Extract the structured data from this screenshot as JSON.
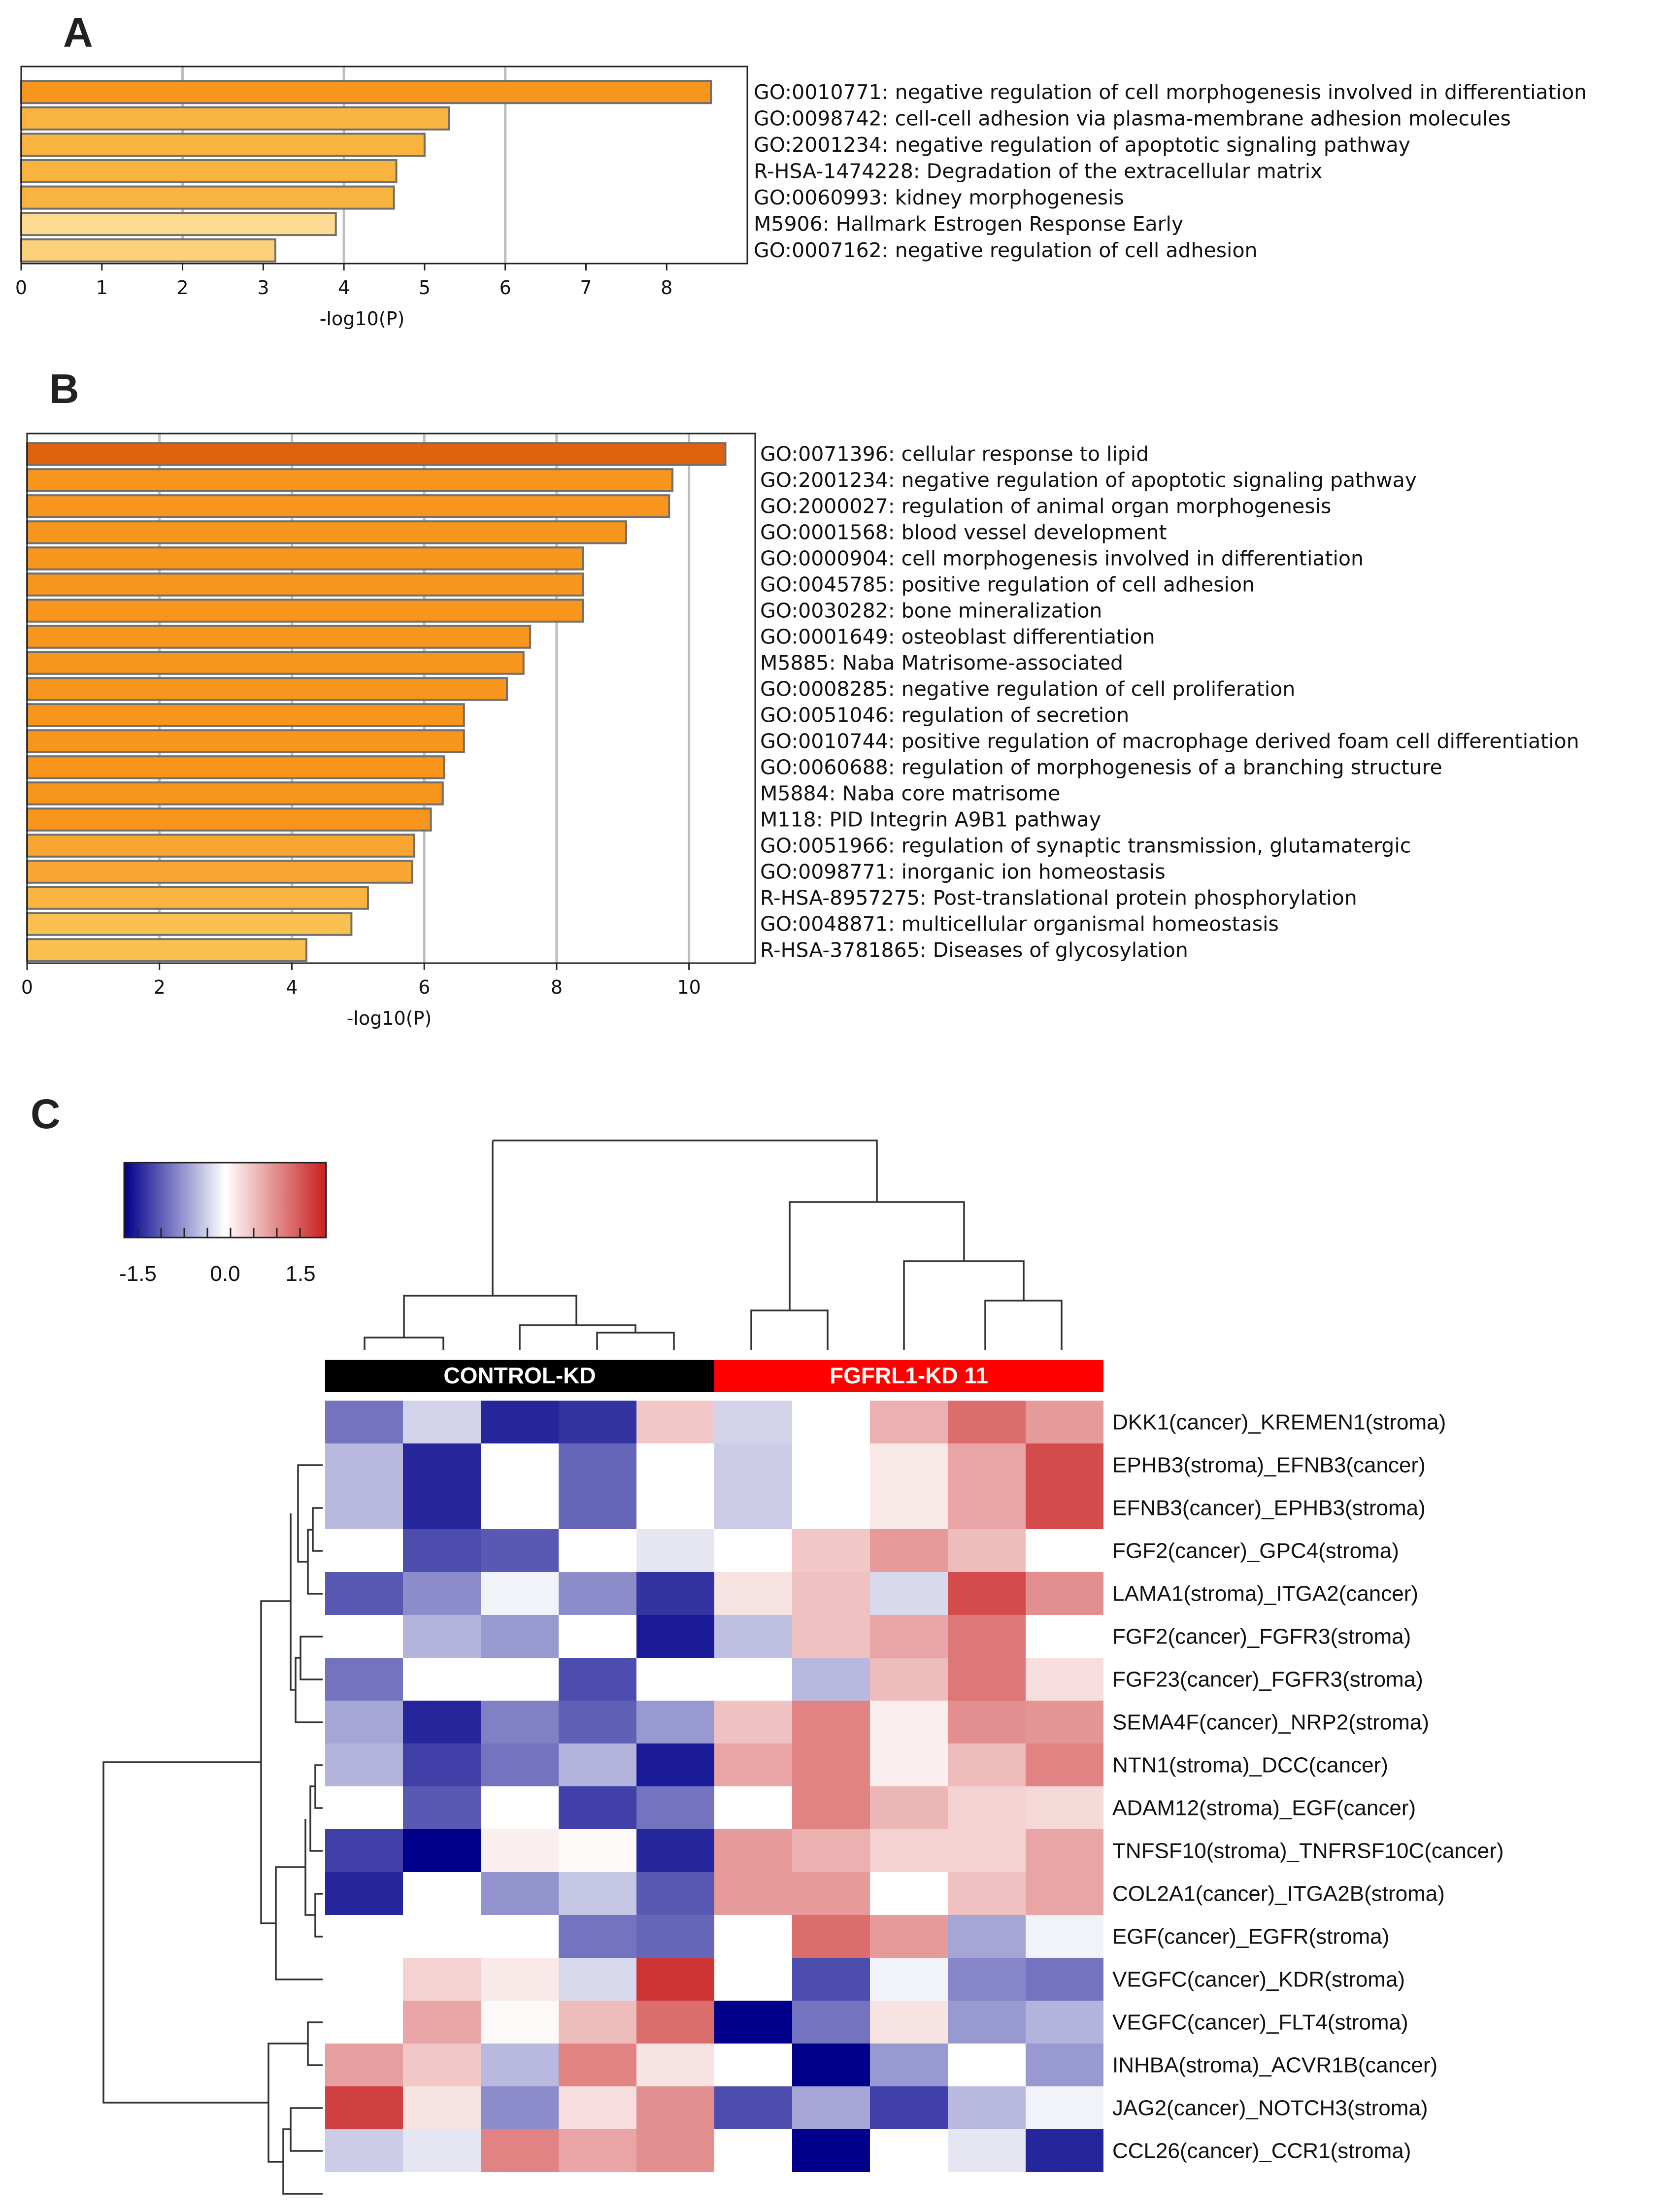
{
  "chart_data": [
    {
      "panel": "A",
      "type": "bar",
      "orientation": "horizontal",
      "xlabel": "-log10(P)",
      "xlim": [
        0,
        9
      ],
      "xticks": [
        "0",
        "1",
        "2",
        "3",
        "4",
        "5",
        "6",
        "7",
        "8"
      ],
      "grid_at": [
        2,
        4,
        6
      ],
      "categories": [
        "GO:0010771: negative regulation of cell morphogenesis involved in differentiation",
        "GO:0098742: cell-cell adhesion via plasma-membrane adhesion molecules",
        "GO:2001234: negative regulation of apoptotic signaling pathway",
        "R-HSA-1474228: Degradation of the extracellular matrix",
        "GO:0060993: kidney morphogenesis",
        "M5906: Hallmark Estrogen Response Early",
        "GO:0007162: negative regulation of cell adhesion"
      ],
      "values": [
        8.55,
        5.3,
        5.0,
        4.65,
        4.62,
        3.9,
        3.15
      ],
      "colors": [
        "#F7951D",
        "#F9B43F",
        "#F9B43F",
        "#F9B43F",
        "#F9B43F",
        "#FCDA8F",
        "#FCD17A"
      ]
    },
    {
      "panel": "B",
      "type": "bar",
      "orientation": "horizontal",
      "xlabel": "-log10(P)",
      "xlim": [
        0,
        11
      ],
      "xticks": [
        "0",
        "2",
        "4",
        "6",
        "8",
        "10"
      ],
      "grid_at": [
        2,
        4,
        6,
        8,
        10
      ],
      "categories": [
        "GO:0071396: cellular response to lipid",
        "GO:2001234: negative regulation of apoptotic signaling pathway",
        "GO:2000027: regulation of animal organ morphogenesis",
        "GO:0001568: blood vessel development",
        "GO:0000904: cell morphogenesis involved in differentiation",
        "GO:0045785: positive regulation of cell adhesion",
        "GO:0030282: bone mineralization",
        "GO:0001649: osteoblast differentiation",
        "M5885: Naba Matrisome-associated",
        "GO:0008285: negative regulation of cell proliferation",
        "GO:0051046: regulation of secretion",
        "GO:0010744: positive regulation of macrophage derived foam cell differentiation",
        "GO:0060688: regulation of morphogenesis of a branching structure",
        "M5884: Naba core matrisome",
        "M118: PID Integrin A9B1 pathway",
        "GO:0051966: regulation of synaptic transmission, glutamatergic",
        "GO:0098771: inorganic ion homeostasis",
        "R-HSA-8957275: Post-translational protein phosphorylation",
        "GO:0048871: multicellular organismal homeostasis",
        "R-HSA-3781865: Diseases of glycosylation"
      ],
      "values": [
        10.55,
        9.75,
        9.7,
        9.05,
        8.4,
        8.4,
        8.4,
        7.6,
        7.5,
        7.25,
        6.6,
        6.6,
        6.3,
        6.28,
        6.1,
        5.85,
        5.82,
        5.15,
        4.9,
        4.22
      ],
      "colors": [
        "#E0620F",
        "#F7951D",
        "#F7951D",
        "#F7951D",
        "#F7951D",
        "#F7951D",
        "#F7951D",
        "#F7951D",
        "#F7951D",
        "#F7951D",
        "#F7951D",
        "#F7951D",
        "#F7951D",
        "#F7951D",
        "#F7951D",
        "#F9A531",
        "#F9A531",
        "#F9B43F",
        "#FAC050",
        "#FAC050"
      ]
    },
    {
      "panel": "C",
      "type": "heatmap",
      "colorbar": {
        "ticks": [
          "-1.5",
          "0.0",
          "1.5"
        ],
        "range": [
          -2.0,
          2.0
        ]
      },
      "groups": [
        {
          "label": "CONTROL-KD",
          "count": 5,
          "color": "#000000"
        },
        {
          "label": "FGFRL1-KD 11",
          "count": 5,
          "color": "#FF0000"
        }
      ],
      "rows": [
        "DKK1(cancer)_KREMEN1(stroma)",
        "EPHB3(stroma)_EFNB3(cancer)",
        "EFNB3(cancer)_EPHB3(stroma)",
        "FGF2(cancer)_GPC4(stroma)",
        "LAMA1(stroma)_ITGA2(cancer)",
        "FGF2(cancer)_FGFR3(stroma)",
        "FGF23(cancer)_FGFR3(stroma)",
        "SEMA4F(cancer)_NRP2(stroma)",
        "NTN1(stroma)_DCC(cancer)",
        "ADAM12(stroma)_EGF(cancer)",
        "TNFSF10(stroma)_TNFRSF10C(cancer)",
        "COL2A1(cancer)_ITGA2B(stroma)",
        "EGF(cancer)_EGFR(stroma)",
        "VEGFC(cancer)_KDR(stroma)",
        "VEGFC(cancer)_FLT4(stroma)",
        "INHBA(stroma)_ACVR1B(cancer)",
        "JAG2(cancer)_NOTCH3(stroma)",
        "CCL26(cancer)_CCR1(stroma)"
      ],
      "values": [
        [
          -1.1,
          -0.35,
          -1.7,
          -1.6,
          0.5,
          -0.35,
          0.0,
          0.7,
          1.3,
          0.9
        ],
        [
          -0.55,
          -1.7,
          0.0,
          -1.2,
          0.0,
          -0.4,
          0.0,
          0.2,
          0.8,
          1.6
        ],
        [
          -0.55,
          -1.7,
          0.0,
          -1.2,
          0.0,
          -0.4,
          0.0,
          0.2,
          0.8,
          1.6
        ],
        [
          0.0,
          -1.4,
          -1.3,
          0.0,
          -0.2,
          0.0,
          0.5,
          0.9,
          0.6,
          0.0
        ],
        [
          -1.3,
          -0.9,
          -0.1,
          -0.9,
          -1.6,
          0.25,
          0.55,
          -0.3,
          1.6,
          1.0
        ],
        [
          0.0,
          -0.6,
          -0.8,
          0.0,
          -1.8,
          -0.5,
          0.55,
          0.8,
          1.2,
          0.0
        ],
        [
          -1.1,
          0.0,
          0.0,
          -1.4,
          0.0,
          0.0,
          -0.55,
          0.6,
          1.2,
          0.3
        ],
        [
          -0.7,
          -1.7,
          -1.0,
          -1.25,
          -0.8,
          0.55,
          1.1,
          0.15,
          1.0,
          0.95
        ],
        [
          -0.6,
          -1.5,
          -1.1,
          -0.6,
          -1.8,
          0.8,
          1.1,
          0.15,
          0.6,
          1.1
        ],
        [
          0.0,
          -1.3,
          0.0,
          -1.5,
          -1.1,
          0.0,
          1.1,
          0.65,
          0.4,
          0.35
        ],
        [
          -1.5,
          -2.0,
          0.15,
          0.05,
          -1.7,
          0.9,
          0.7,
          0.4,
          0.4,
          0.8
        ],
        [
          -1.7,
          0.0,
          -0.85,
          -0.45,
          -1.3,
          0.9,
          0.9,
          0.0,
          0.55,
          0.8
        ],
        [
          0.0,
          0.0,
          0.0,
          -1.1,
          -1.2,
          0.0,
          1.3,
          0.9,
          -0.7,
          -0.1
        ],
        [
          0.0,
          0.4,
          0.2,
          -0.3,
          1.8,
          0.0,
          -1.4,
          -0.1,
          -0.95,
          -1.1
        ],
        [
          0.0,
          0.8,
          0.05,
          0.6,
          1.3,
          -2.0,
          -1.1,
          0.25,
          -0.8,
          -0.6
        ],
        [
          0.85,
          0.5,
          -0.55,
          1.1,
          0.25,
          0.0,
          -2.0,
          -0.8,
          0.0,
          -0.8
        ],
        [
          1.7,
          0.25,
          -0.9,
          0.3,
          1.0,
          -1.4,
          -0.7,
          -1.5,
          -0.55,
          -0.1
        ],
        [
          -0.4,
          -0.2,
          1.1,
          0.8,
          1.0,
          0.0,
          -2.0,
          0.0,
          -0.2,
          -1.7
        ]
      ]
    }
  ],
  "labels": {
    "panel_a": "A",
    "panel_b": "B",
    "panel_c": "C"
  },
  "colors": {
    "bar_stroke": "#707070",
    "grid": "#BDBDBD",
    "dendrogram": "#333333"
  }
}
